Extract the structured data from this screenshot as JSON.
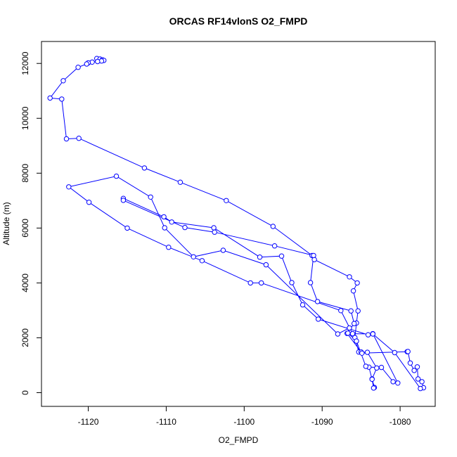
{
  "chart_data": {
    "type": "line",
    "title": "ORCAS RF14vlonS O2_FMPD",
    "xlabel": "O2_FMPD",
    "ylabel": "Altitude (m)",
    "xlim": [
      -1126,
      -1075.5
    ],
    "ylim": [
      -500,
      12800
    ],
    "xticks": [
      -1120,
      -1110,
      -1100,
      -1090,
      -1080
    ],
    "yticks": [
      0,
      2000,
      4000,
      6000,
      8000,
      10000,
      12000
    ],
    "grid": false,
    "series": [
      {
        "color": "#0000ff",
        "marker": "open-circle",
        "points": [
          [
            -1118.9,
            12180
          ],
          [
            -1118.5,
            12160
          ],
          [
            -1118.2,
            12130
          ],
          [
            -1118.0,
            12110
          ],
          [
            -1118.3,
            12090
          ],
          [
            -1118.8,
            12070
          ],
          [
            -1119.5,
            12050
          ],
          [
            -1120.0,
            12020
          ],
          [
            -1120.2,
            11980
          ],
          [
            -1121.3,
            11860
          ],
          [
            -1123.2,
            11370
          ],
          [
            -1124.9,
            10740
          ],
          [
            -1123.4,
            10700
          ],
          [
            -1122.8,
            9250
          ],
          [
            -1121.2,
            9270
          ],
          [
            -1112.8,
            8190
          ],
          [
            -1108.2,
            7670
          ],
          [
            -1102.3,
            7000
          ],
          [
            -1096.3,
            6060
          ],
          [
            -1091.3,
            5000
          ],
          [
            -1091.0,
            4850
          ],
          [
            -1086.5,
            4220
          ],
          [
            -1085.5,
            4000
          ],
          [
            -1086.0,
            3710
          ],
          [
            -1085.4,
            2980
          ],
          [
            -1085.6,
            2540
          ],
          [
            -1085.8,
            2010
          ],
          [
            -1085.3,
            1480
          ],
          [
            -1084.2,
            1470
          ],
          [
            -1083.0,
            900
          ],
          [
            -1083.6,
            500
          ],
          [
            -1083.3,
            190
          ],
          [
            -1083.4,
            170
          ],
          [
            -1083.6,
            490
          ],
          [
            -1084.0,
            930
          ],
          [
            -1082.4,
            920
          ],
          [
            -1080.9,
            400
          ],
          [
            -1080.3,
            350
          ],
          [
            -1083.5,
            2150
          ],
          [
            -1084.1,
            2110
          ],
          [
            -1090.5,
            2680
          ],
          [
            -1092.5,
            3200
          ],
          [
            -1093.9,
            4010
          ],
          [
            -1095.2,
            4980
          ],
          [
            -1098.0,
            4940
          ],
          [
            -1103.9,
            6010
          ],
          [
            -1109.3,
            6220
          ],
          [
            -1110.3,
            6410
          ],
          [
            -1115.5,
            7080
          ],
          [
            -1115.5,
            7010
          ],
          [
            -1107.6,
            6020
          ],
          [
            -1103.8,
            5850
          ],
          [
            -1096.1,
            5350
          ],
          [
            -1091.1,
            5000
          ],
          [
            -1091.5,
            4010
          ],
          [
            -1090.6,
            3320
          ],
          [
            -1086.3,
            2980
          ],
          [
            -1085.9,
            2520
          ],
          [
            -1086.8,
            2160
          ],
          [
            -1085.0,
            1480
          ],
          [
            -1084.9,
            1440
          ],
          [
            -1079.1,
            1490
          ],
          [
            -1079.0,
            1500
          ],
          [
            -1078.7,
            1080
          ],
          [
            -1078.2,
            810
          ],
          [
            -1077.8,
            940
          ],
          [
            -1077.7,
            500
          ],
          [
            -1077.2,
            400
          ],
          [
            -1077.0,
            180
          ],
          [
            -1077.4,
            150
          ],
          [
            -1080.7,
            1460
          ],
          [
            -1083.5,
            2140
          ],
          [
            -1086.1,
            2150
          ],
          [
            -1087.6,
            2990
          ],
          [
            -1097.8,
            4000
          ],
          [
            -1099.2,
            4000
          ],
          [
            -1105.4,
            4810
          ],
          [
            -1109.7,
            5300
          ],
          [
            -1115.0,
            6000
          ],
          [
            -1119.9,
            6940
          ],
          [
            -1122.5,
            7500
          ],
          [
            -1116.4,
            7890
          ],
          [
            -1112.0,
            7130
          ],
          [
            -1110.2,
            6010
          ],
          [
            -1106.5,
            4950
          ],
          [
            -1102.7,
            5190
          ],
          [
            -1097.2,
            4660
          ],
          [
            -1088.0,
            2140
          ],
          [
            -1086.5,
            2360
          ],
          [
            -1086.7,
            2170
          ],
          [
            -1085.6,
            1880
          ],
          [
            -1084.4,
            960
          ]
        ]
      }
    ]
  }
}
